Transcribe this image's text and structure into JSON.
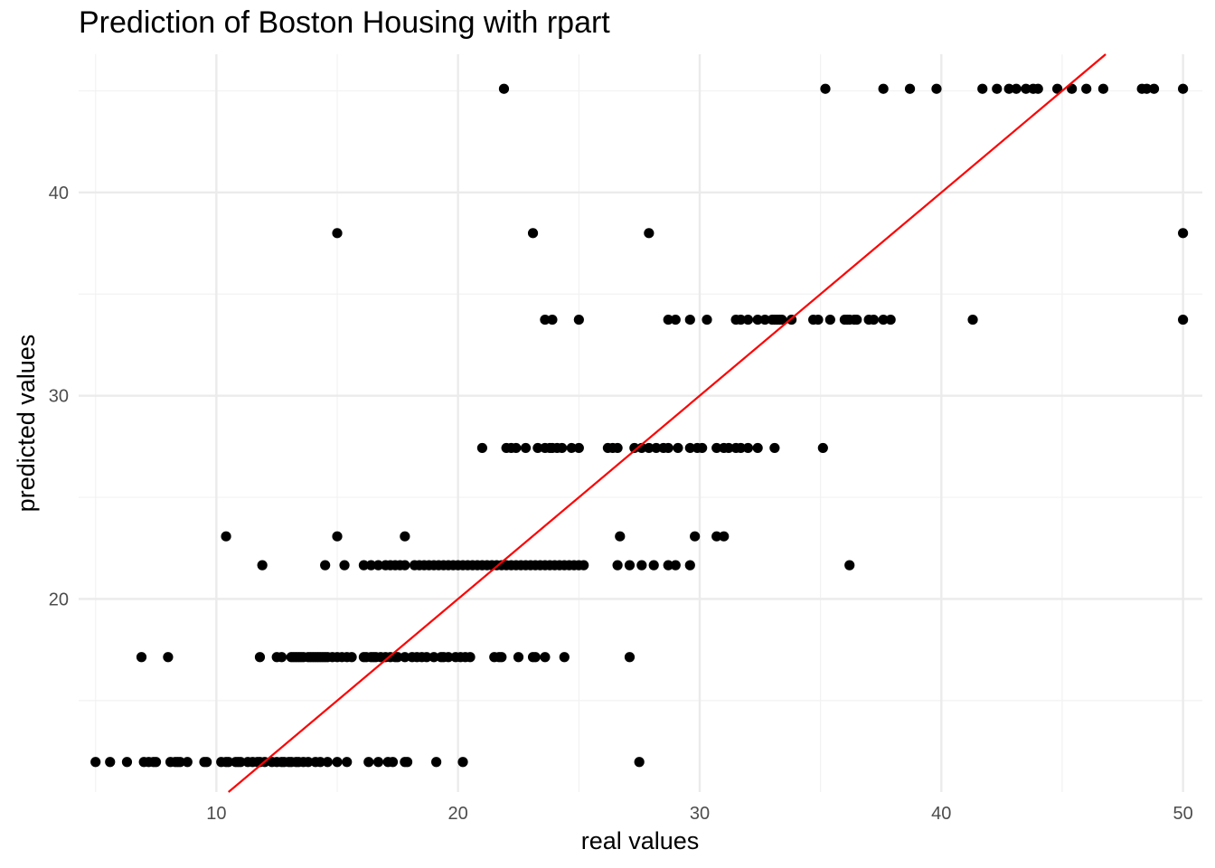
{
  "chart_data": {
    "type": "scatter",
    "title": "Prediction of Boston Housing with rpart",
    "xlabel": "real values",
    "ylabel": "predicted values",
    "xlim": [
      4.3,
      50.8
    ],
    "ylim": [
      10.5,
      46.8
    ],
    "x_ticks": [
      10,
      20,
      30,
      40,
      50
    ],
    "y_ticks": [
      20,
      30,
      40
    ],
    "grid": true,
    "point_color": "#000000",
    "reference_line": {
      "type": "identity",
      "slope": 1,
      "intercept": 0,
      "color": "#ff0000"
    },
    "series": [
      {
        "predicted": 11.98,
        "real": [
          5.0,
          5.6,
          6.3,
          7.0,
          7.2,
          7.4,
          7.5,
          8.1,
          8.3,
          8.4,
          8.5,
          8.8,
          9.5,
          9.6,
          10.2,
          10.4,
          10.5,
          10.8,
          10.9,
          11.0,
          11.3,
          11.5,
          11.7,
          11.8,
          12.0,
          12.3,
          12.5,
          12.7,
          12.8,
          13.0,
          13.1,
          13.3,
          13.4,
          13.6,
          13.8,
          14.1,
          14.3,
          14.6,
          15.0,
          15.4,
          16.3,
          16.7,
          17.1,
          17.3,
          17.8,
          17.9,
          19.1,
          20.2,
          27.5
        ]
      },
      {
        "predicted": 17.14,
        "real": [
          6.9,
          8.0,
          11.8,
          12.5,
          12.7,
          13.1,
          13.2,
          13.3,
          13.4,
          13.5,
          13.6,
          13.8,
          13.9,
          14.0,
          14.1,
          14.2,
          14.3,
          14.4,
          14.5,
          14.6,
          14.8,
          15.0,
          15.2,
          15.4,
          15.6,
          16.1,
          16.2,
          16.4,
          16.5,
          16.6,
          16.8,
          17.0,
          17.2,
          17.4,
          17.5,
          17.8,
          18.1,
          18.3,
          18.5,
          18.7,
          19.0,
          19.3,
          19.4,
          19.6,
          19.9,
          20.1,
          20.3,
          20.5,
          21.5,
          21.7,
          21.8,
          22.5,
          23.1,
          23.2,
          23.6,
          24.4,
          27.1
        ]
      },
      {
        "predicted": 21.66,
        "real": [
          11.9,
          14.5,
          15.3,
          16.1,
          16.4,
          16.7,
          17.0,
          17.2,
          17.4,
          17.6,
          17.8,
          18.2,
          18.4,
          18.6,
          18.8,
          19.0,
          19.2,
          19.4,
          19.6,
          19.8,
          20.0,
          20.2,
          20.4,
          20.6,
          20.8,
          21.0,
          21.2,
          21.4,
          21.6,
          21.8,
          22.0,
          22.2,
          22.4,
          22.6,
          22.8,
          23.0,
          23.2,
          23.4,
          23.6,
          23.8,
          24.0,
          24.2,
          24.4,
          24.6,
          24.8,
          25.0,
          25.2,
          26.6,
          27.1,
          27.6,
          28.1,
          28.7,
          29.0,
          29.6,
          36.2
        ]
      },
      {
        "predicted": 23.08,
        "real": [
          10.4,
          15.0,
          17.8,
          26.7,
          29.8,
          30.7,
          31.0
        ]
      },
      {
        "predicted": 27.43,
        "real": [
          21.0,
          22.0,
          22.2,
          22.4,
          22.8,
          23.3,
          23.6,
          23.8,
          23.9,
          24.1,
          24.3,
          24.7,
          25.0,
          26.2,
          26.4,
          26.6,
          27.3,
          27.6,
          27.9,
          28.2,
          28.5,
          28.7,
          29.1,
          29.6,
          29.9,
          30.1,
          30.7,
          31.0,
          31.2,
          31.5,
          31.7,
          32.0,
          32.4,
          33.1,
          35.1
        ]
      },
      {
        "predicted": 33.74,
        "real": [
          23.6,
          23.9,
          25.0,
          28.7,
          29.0,
          29.6,
          30.3,
          31.5,
          31.7,
          32.0,
          32.4,
          32.7,
          33.0,
          33.1,
          33.2,
          33.3,
          33.4,
          33.8,
          34.7,
          34.9,
          35.4,
          36.0,
          36.1,
          36.2,
          36.4,
          36.5,
          37.0,
          37.2,
          37.6,
          37.9,
          41.3,
          50.0
        ]
      },
      {
        "predicted": 38.0,
        "real": [
          15.0,
          23.1,
          27.9,
          50.0
        ]
      },
      {
        "predicted": 45.1,
        "real": [
          21.9,
          35.2,
          37.6,
          38.7,
          39.8,
          41.7,
          42.3,
          42.8,
          43.1,
          43.5,
          43.8,
          44.0,
          44.8,
          45.4,
          46.0,
          46.7,
          48.3,
          48.5,
          48.8,
          50.0
        ]
      }
    ]
  }
}
